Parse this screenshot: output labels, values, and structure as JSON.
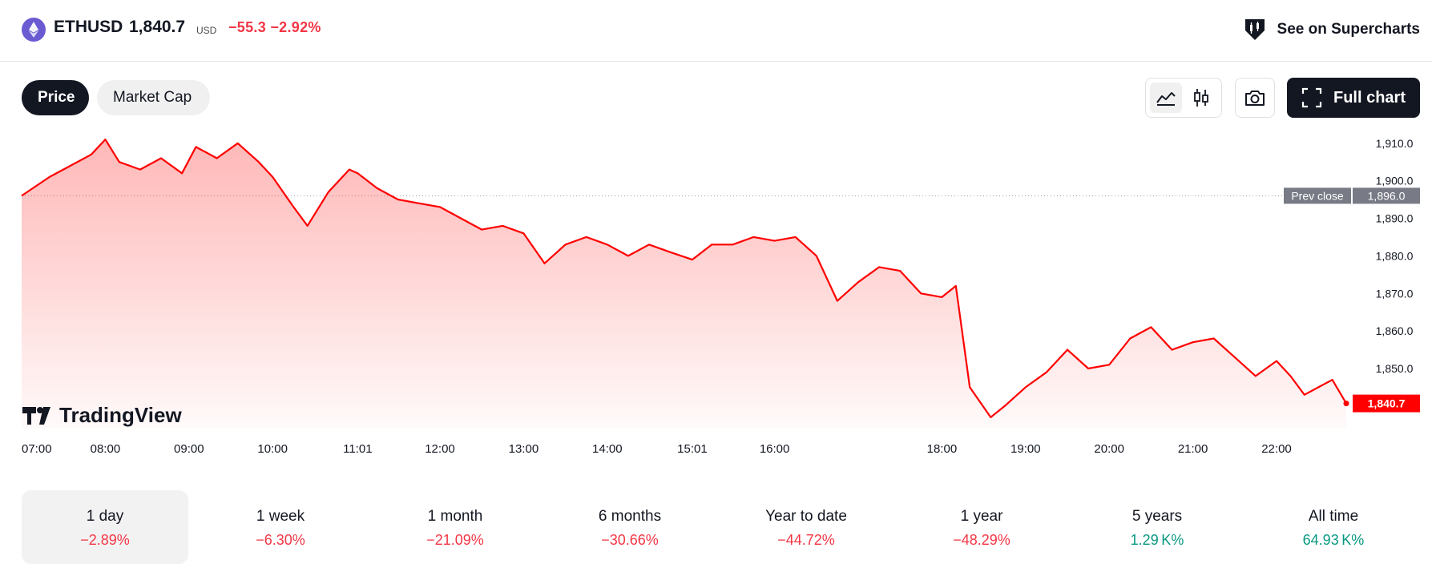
{
  "header": {
    "symbol": "ETHUSD",
    "price": "1,840.7",
    "currency": "USD",
    "change": "−55.3 −2.92%",
    "supercharts_label": "See on Supercharts",
    "coin_icon": "ethereum-icon"
  },
  "tabs": {
    "price": "Price",
    "market_cap": "Market Cap"
  },
  "toolbar": {
    "area_icon": "area-chart-icon",
    "candle_icon": "candlestick-icon",
    "snapshot_icon": "camera-icon",
    "full_chart_label": "Full chart",
    "full_chart_icon": "fullscreen-icon"
  },
  "colors": {
    "accent_negative": "#f23645",
    "accent_positive": "#089981",
    "line": "#ff0000",
    "dark": "#131722"
  },
  "chart_data": {
    "type": "area",
    "watermark": "TradingView",
    "x_ticks": [
      "07:00",
      "08:00",
      "09:00",
      "10:00",
      "11:01",
      "12:00",
      "13:00",
      "14:00",
      "15:01",
      "16:00",
      "18:00",
      "19:00",
      "20:00",
      "21:00",
      "22:00"
    ],
    "y_ticks": [
      "1,910.0",
      "1,900.0",
      "1,890.0",
      "1,880.0",
      "1,870.0",
      "1,860.0",
      "1,850.0"
    ],
    "ylim": [
      1834,
      1914
    ],
    "prev_close": {
      "label": "Prev close",
      "value": 1896.0,
      "value_label": "1,896.0"
    },
    "last": {
      "value": 1840.7,
      "label": "1,840.7"
    },
    "series": [
      {
        "x": "07:00",
        "y": 1896
      },
      {
        "x": "07:20",
        "y": 1901
      },
      {
        "x": "07:35",
        "y": 1904
      },
      {
        "x": "07:50",
        "y": 1907
      },
      {
        "x": "08:00",
        "y": 1911
      },
      {
        "x": "08:10",
        "y": 1905
      },
      {
        "x": "08:25",
        "y": 1903
      },
      {
        "x": "08:40",
        "y": 1906
      },
      {
        "x": "08:55",
        "y": 1902
      },
      {
        "x": "09:05",
        "y": 1909
      },
      {
        "x": "09:20",
        "y": 1906
      },
      {
        "x": "09:35",
        "y": 1910
      },
      {
        "x": "09:50",
        "y": 1905
      },
      {
        "x": "10:00",
        "y": 1901
      },
      {
        "x": "10:15",
        "y": 1893
      },
      {
        "x": "10:25",
        "y": 1888
      },
      {
        "x": "10:40",
        "y": 1897
      },
      {
        "x": "10:55",
        "y": 1903
      },
      {
        "x": "11:01",
        "y": 1902
      },
      {
        "x": "11:15",
        "y": 1898
      },
      {
        "x": "11:30",
        "y": 1895
      },
      {
        "x": "11:45",
        "y": 1894
      },
      {
        "x": "12:00",
        "y": 1893
      },
      {
        "x": "12:15",
        "y": 1890
      },
      {
        "x": "12:30",
        "y": 1887
      },
      {
        "x": "12:45",
        "y": 1888
      },
      {
        "x": "13:00",
        "y": 1886
      },
      {
        "x": "13:15",
        "y": 1878
      },
      {
        "x": "13:30",
        "y": 1883
      },
      {
        "x": "13:45",
        "y": 1885
      },
      {
        "x": "14:00",
        "y": 1883
      },
      {
        "x": "14:15",
        "y": 1880
      },
      {
        "x": "14:30",
        "y": 1883
      },
      {
        "x": "14:45",
        "y": 1881
      },
      {
        "x": "15:01",
        "y": 1879
      },
      {
        "x": "15:15",
        "y": 1883
      },
      {
        "x": "15:30",
        "y": 1883
      },
      {
        "x": "15:45",
        "y": 1885
      },
      {
        "x": "16:00",
        "y": 1884
      },
      {
        "x": "16:15",
        "y": 1885
      },
      {
        "x": "16:30",
        "y": 1880
      },
      {
        "x": "16:45",
        "y": 1868
      },
      {
        "x": "17:00",
        "y": 1873
      },
      {
        "x": "17:15",
        "y": 1877
      },
      {
        "x": "17:30",
        "y": 1876
      },
      {
        "x": "17:45",
        "y": 1870
      },
      {
        "x": "18:00",
        "y": 1869
      },
      {
        "x": "18:10",
        "y": 1872
      },
      {
        "x": "18:20",
        "y": 1845
      },
      {
        "x": "18:35",
        "y": 1837
      },
      {
        "x": "18:45",
        "y": 1840
      },
      {
        "x": "19:00",
        "y": 1845
      },
      {
        "x": "19:15",
        "y": 1849
      },
      {
        "x": "19:30",
        "y": 1855
      },
      {
        "x": "19:45",
        "y": 1850
      },
      {
        "x": "20:00",
        "y": 1851
      },
      {
        "x": "20:15",
        "y": 1858
      },
      {
        "x": "20:30",
        "y": 1861
      },
      {
        "x": "20:45",
        "y": 1855
      },
      {
        "x": "21:00",
        "y": 1857
      },
      {
        "x": "21:15",
        "y": 1858
      },
      {
        "x": "21:30",
        "y": 1853
      },
      {
        "x": "21:45",
        "y": 1848
      },
      {
        "x": "22:00",
        "y": 1852
      },
      {
        "x": "22:10",
        "y": 1848
      },
      {
        "x": "22:20",
        "y": 1843
      },
      {
        "x": "22:30",
        "y": 1845
      },
      {
        "x": "22:40",
        "y": 1847
      },
      {
        "x": "22:50",
        "y": 1840.7
      }
    ]
  },
  "periods": [
    {
      "label": "1 day",
      "value": "−2.89%",
      "trend": "neg",
      "active": true
    },
    {
      "label": "1 week",
      "value": "−6.30%",
      "trend": "neg",
      "active": false
    },
    {
      "label": "1 month",
      "value": "−21.09%",
      "trend": "neg",
      "active": false
    },
    {
      "label": "6 months",
      "value": "−30.66%",
      "trend": "neg",
      "active": false
    },
    {
      "label": "Year to date",
      "value": "−44.72%",
      "trend": "neg",
      "active": false
    },
    {
      "label": "1 year",
      "value": "−48.29%",
      "trend": "neg",
      "active": false
    },
    {
      "label": "5 years",
      "value": "1.29 K%",
      "trend": "pos",
      "active": false
    },
    {
      "label": "All time",
      "value": "64.93 K%",
      "trend": "pos",
      "active": false
    }
  ]
}
